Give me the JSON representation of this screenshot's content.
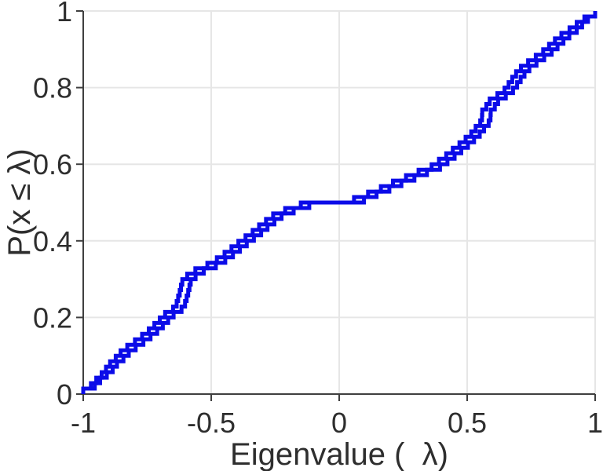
{
  "chart_data": {
    "type": "line",
    "subtype": "empirical-cdf-staircase",
    "title": "",
    "xlabel": "Eigenvalue (  λ)",
    "ylabel": "P(x ≤ λ)",
    "xlim": [
      -1,
      1
    ],
    "ylim": [
      0,
      1
    ],
    "grid": true,
    "legend": null,
    "x_ticks": {
      "values": [
        -1,
        -0.5,
        0,
        0.5,
        1
      ],
      "labels": [
        "-1",
        "-0.5",
        "0",
        "0.5",
        "1"
      ]
    },
    "y_ticks": {
      "values": [
        0,
        0.2,
        0.4,
        0.6,
        0.8,
        1
      ],
      "labels": [
        "0",
        "0.2",
        "0.4",
        "0.6",
        "0.8",
        "1"
      ]
    },
    "colors": {
      "line": "#0b0be8",
      "axis": "#3f3f3f",
      "grid": "#e6e6e6",
      "text": "#2e2e2e",
      "background": "#ffffff"
    },
    "series": [
      {
        "name": "empirical-cdf-1",
        "n": 70,
        "step": 0.0142857,
        "eigenvalues": [
          -1.0,
          -0.97,
          -0.949,
          -0.928,
          -0.911,
          -0.895,
          -0.873,
          -0.854,
          -0.828,
          -0.798,
          -0.77,
          -0.744,
          -0.722,
          -0.701,
          -0.68,
          -0.649,
          -0.635,
          -0.629,
          -0.623,
          -0.618,
          -0.613,
          -0.594,
          -0.562,
          -0.515,
          -0.478,
          -0.448,
          -0.421,
          -0.394,
          -0.366,
          -0.338,
          -0.313,
          -0.286,
          -0.258,
          -0.211,
          -0.15,
          0.058,
          0.113,
          0.163,
          0.21,
          0.261,
          0.31,
          0.361,
          0.39,
          0.418,
          0.444,
          0.47,
          0.494,
          0.516,
          0.533,
          0.551,
          0.558,
          0.559,
          0.575,
          0.588,
          0.618,
          0.646,
          0.662,
          0.676,
          0.691,
          0.71,
          0.738,
          0.768,
          0.797,
          0.82,
          0.843,
          0.868,
          0.9,
          0.928,
          0.958,
          1.0
        ]
      },
      {
        "name": "empirical-cdf-2",
        "n": 70,
        "step": 0.0142857,
        "eigenvalues": [
          -1.0,
          -0.955,
          -0.934,
          -0.908,
          -0.885,
          -0.868,
          -0.843,
          -0.822,
          -0.795,
          -0.765,
          -0.737,
          -0.711,
          -0.689,
          -0.668,
          -0.647,
          -0.616,
          -0.602,
          -0.596,
          -0.59,
          -0.585,
          -0.58,
          -0.561,
          -0.529,
          -0.482,
          -0.445,
          -0.415,
          -0.388,
          -0.361,
          -0.333,
          -0.305,
          -0.28,
          -0.253,
          -0.225,
          -0.178,
          -0.117,
          0.097,
          0.146,
          0.196,
          0.243,
          0.294,
          0.343,
          0.394,
          0.423,
          0.451,
          0.477,
          0.503,
          0.527,
          0.549,
          0.566,
          0.584,
          0.591,
          0.592,
          0.608,
          0.621,
          0.651,
          0.679,
          0.695,
          0.709,
          0.724,
          0.743,
          0.771,
          0.801,
          0.83,
          0.853,
          0.876,
          0.899,
          0.928,
          0.949,
          0.972,
          1.0
        ]
      }
    ]
  }
}
